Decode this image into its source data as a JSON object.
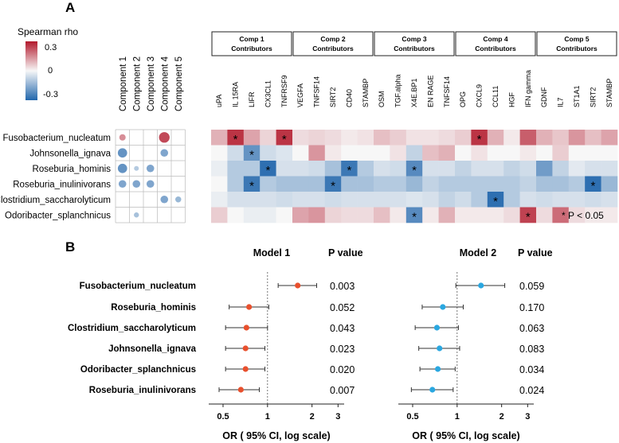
{
  "panelA": {
    "letter": "A",
    "legend": {
      "title": "Spearman rho",
      "ticks": [
        "0.3",
        "0",
        "-0.3"
      ],
      "colors": {
        "pos": "#b2182b",
        "mid": "#f7f7f7",
        "neg": "#2166ac"
      }
    },
    "bacteria": [
      "Fusobacterium_nucleatum",
      "Johnsonella_ignava",
      "Roseburia_hominis",
      "Roseburia_inulinivorans",
      "Clostridium_saccharolyticum",
      "Odoribacter_splanchnicus"
    ],
    "components": [
      "Component 1",
      "Component 2",
      "Component 3",
      "Component 4",
      "Component 5"
    ],
    "component_rho": [
      [
        0.15,
        0,
        0,
        0.25,
        0
      ],
      [
        -0.22,
        0,
        0,
        -0.18,
        0
      ],
      [
        -0.22,
        -0.1,
        -0.18,
        0,
        0
      ],
      [
        -0.18,
        -0.18,
        -0.18,
        0,
        0
      ],
      [
        0,
        0,
        0,
        -0.18,
        -0.14
      ],
      [
        0,
        -0.12,
        0,
        0,
        0
      ]
    ],
    "groups": [
      {
        "name": "Comp 1",
        "sub": "Contributors"
      },
      {
        "name": "Comp 2",
        "sub": "Contributors"
      },
      {
        "name": "Comp 3",
        "sub": "Contributors"
      },
      {
        "name": "Comp 4",
        "sub": "Contributors"
      },
      {
        "name": "Comp 5",
        "sub": "Contributors"
      }
    ],
    "group_sizes": [
      5,
      5,
      5,
      5,
      5
    ],
    "markers": [
      "uPA",
      "IL 15RA",
      "LIFR",
      "CX3CL1",
      "TNFRSF9",
      "VEGFA",
      "TNFSF14",
      "SIRT2",
      "CD40",
      "STAMBP",
      "OSM",
      "TGF.alpha",
      "X4E.BP1",
      "EN RAGE",
      "TNFSF14",
      "OPG",
      "CXCL9",
      "CCL11",
      "HGF",
      "IFN gamma",
      "GDNF",
      "IL7",
      "ST1A1",
      "SIRT2",
      "STAMBP"
    ],
    "marker_rho": [
      [
        0.1,
        0.28,
        0.12,
        0.05,
        0.28,
        0.04,
        0.05,
        0.04,
        0.02,
        0.03,
        0.08,
        0.06,
        0.03,
        0.03,
        0.04,
        0.06,
        0.28,
        0.1,
        0.02,
        0.22,
        0.1,
        0.07,
        0.14,
        0.08,
        0.12
      ],
      [
        0.0,
        -0.06,
        -0.22,
        -0.06,
        -0.04,
        0.0,
        0.14,
        0.02,
        0.0,
        0.0,
        0.0,
        0.03,
        -0.08,
        0.08,
        0.1,
        0.0,
        0.03,
        0.0,
        0.0,
        0.02,
        0.0,
        0.06,
        0.0,
        0.0,
        0.0
      ],
      [
        -0.02,
        -0.1,
        -0.1,
        -0.3,
        -0.05,
        -0.05,
        -0.06,
        -0.12,
        -0.28,
        -0.1,
        -0.05,
        -0.06,
        -0.24,
        -0.05,
        -0.05,
        -0.08,
        -0.05,
        -0.05,
        -0.08,
        -0.06,
        -0.2,
        -0.08,
        -0.03,
        -0.05,
        -0.05
      ],
      [
        0.0,
        -0.1,
        -0.28,
        -0.1,
        -0.12,
        -0.12,
        -0.12,
        -0.28,
        -0.12,
        -0.12,
        -0.1,
        -0.1,
        -0.14,
        -0.08,
        -0.1,
        -0.1,
        -0.1,
        -0.1,
        -0.1,
        -0.08,
        -0.12,
        -0.12,
        -0.1,
        -0.3,
        -0.14
      ],
      [
        -0.02,
        -0.05,
        -0.05,
        -0.05,
        -0.06,
        -0.05,
        -0.05,
        -0.06,
        -0.05,
        -0.05,
        -0.05,
        -0.05,
        -0.04,
        -0.05,
        -0.08,
        -0.06,
        -0.1,
        -0.3,
        -0.1,
        -0.05,
        -0.06,
        -0.05,
        -0.05,
        -0.06,
        -0.05
      ],
      [
        0.06,
        0.0,
        -0.02,
        -0.02,
        0.0,
        0.12,
        0.14,
        0.05,
        0.04,
        0.04,
        0.08,
        0.02,
        -0.24,
        0.02,
        0.1,
        0.02,
        0.02,
        0.02,
        0.04,
        0.26,
        0.04,
        0.2,
        0.04,
        0.02,
        0.02
      ]
    ],
    "significant": [
      [
        0,
        1
      ],
      [
        0,
        4
      ],
      [
        0,
        16
      ],
      [
        1,
        2
      ],
      [
        2,
        3
      ],
      [
        2,
        8
      ],
      [
        2,
        12
      ],
      [
        3,
        2
      ],
      [
        3,
        7
      ],
      [
        3,
        23
      ],
      [
        4,
        17
      ],
      [
        5,
        12
      ],
      [
        5,
        19
      ]
    ],
    "star": "*",
    "pnote": "* P < 0.05"
  },
  "panelB": {
    "letter": "B",
    "pvalue_header": "P value",
    "xlabel": "OR ( 95% CI, log scale)",
    "xticks": [
      "0.5",
      "1",
      "2",
      "3"
    ],
    "bacteria": [
      "Fusobacterium_nucleatum",
      "Roseburia_hominis",
      "Clostridium_saccharolyticum",
      "Johnsonella_ignava",
      "Odoribacter_splanchnicus",
      "Roseburia_inulinivorans"
    ]
  },
  "chart_data": [
    {
      "type": "scatter",
      "title": "Model 1",
      "xlabel": "OR ( 95% CI, log scale)",
      "xscale": "log",
      "xlim": [
        0.4,
        3.3
      ],
      "xticks": [
        0.5,
        1,
        2,
        3
      ],
      "reference_line": 1,
      "color": "#e8502d",
      "categories": [
        "Fusobacterium_nucleatum",
        "Roseburia_hominis",
        "Clostridium_saccharolyticum",
        "Johnsonella_ignava",
        "Odoribacter_splanchnicus",
        "Roseburia_inulinivorans"
      ],
      "or": [
        1.6,
        0.75,
        0.72,
        0.71,
        0.71,
        0.66
      ],
      "lower": [
        1.18,
        0.55,
        0.52,
        0.52,
        0.52,
        0.47
      ],
      "upper": [
        2.15,
        1.02,
        1.0,
        0.96,
        0.96,
        0.88
      ],
      "pvalues": [
        "0.003",
        "0.052",
        "0.043",
        "0.023",
        "0.020",
        "0.007"
      ]
    },
    {
      "type": "scatter",
      "title": "Model 2",
      "xlabel": "OR ( 95% CI, log scale)",
      "xscale": "log",
      "xlim": [
        0.4,
        3.3
      ],
      "xticks": [
        0.5,
        1,
        2,
        3
      ],
      "reference_line": 1,
      "color": "#2aa7e0",
      "categories": [
        "Fusobacterium_nucleatum",
        "Roseburia_hominis",
        "Clostridium_saccharolyticum",
        "Johnsonella_ignava",
        "Odoribacter_splanchnicus",
        "Roseburia_inulinivorans"
      ],
      "or": [
        1.45,
        0.8,
        0.73,
        0.76,
        0.74,
        0.68
      ],
      "lower": [
        0.98,
        0.58,
        0.52,
        0.55,
        0.56,
        0.49
      ],
      "upper": [
        2.1,
        1.1,
        1.02,
        1.04,
        0.97,
        0.94
      ],
      "pvalues": [
        "0.059",
        "0.170",
        "0.063",
        "0.083",
        "0.034",
        "0.024"
      ]
    }
  ]
}
